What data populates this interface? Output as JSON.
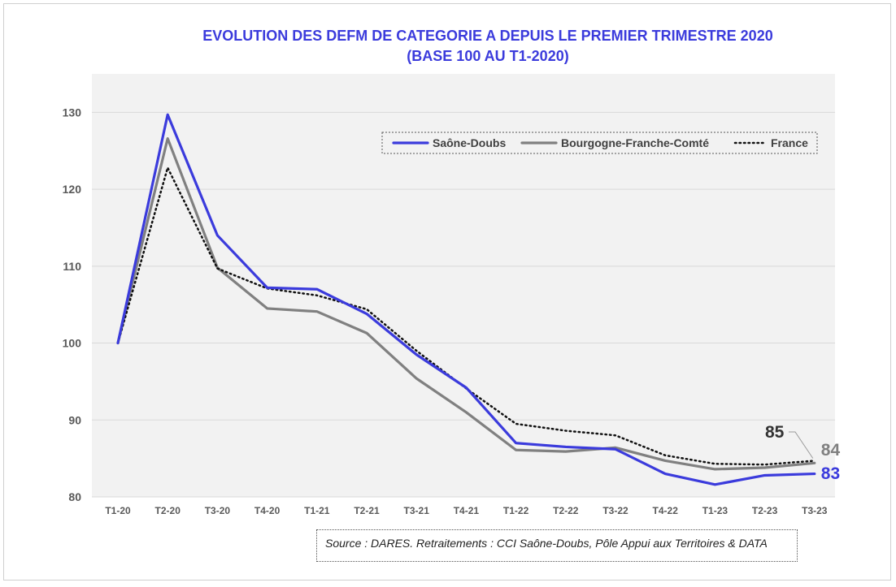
{
  "chart_data": {
    "type": "line",
    "title": "EVOLUTION DES DEFM DE CATEGORIE A DEPUIS LE PREMIER TRIMESTRE 2020",
    "subtitle": "(BASE 100 AU T1-2020)",
    "categories": [
      "T1-20",
      "T2-20",
      "T3-20",
      "T4-20",
      "T1-21",
      "T2-21",
      "T3-21",
      "T4-21",
      "T1-22",
      "T2-22",
      "T3-22",
      "T4-22",
      "T1-23",
      "T2-23",
      "T3-23"
    ],
    "ylim": [
      80,
      135
    ],
    "yticks": [
      "80",
      "90",
      "100",
      "110",
      "120",
      "130"
    ],
    "grid": true,
    "legend_position": "top-right",
    "series": [
      {
        "name": "Saône-Doubs",
        "color": "#3b3bdc",
        "style": "solid",
        "values": [
          100,
          129.7,
          114,
          107.2,
          107,
          103.8,
          98.5,
          94.2,
          87,
          86.5,
          86.2,
          83,
          81.6,
          82.8,
          83
        ],
        "end_label": "83"
      },
      {
        "name": "Bourgogne-Franche-Comté",
        "color": "#808080",
        "style": "solid",
        "values": [
          100,
          126.6,
          109.8,
          104.5,
          104.1,
          101.3,
          95.4,
          91,
          86.1,
          85.9,
          86.4,
          84.7,
          83.6,
          83.8,
          84.4
        ],
        "end_label": "84"
      },
      {
        "name": "France",
        "color": "#111111",
        "style": "dotted",
        "values": [
          100,
          122.8,
          109.7,
          107.1,
          106.2,
          104.4,
          99,
          94.1,
          89.5,
          88.6,
          88,
          85.4,
          84.3,
          84.2,
          84.7
        ],
        "end_label": "85"
      }
    ]
  },
  "source_text": "Source : DARES. Retraitements : CCI Saône-Doubs, Pôle Appui aux Territoires & DATA"
}
